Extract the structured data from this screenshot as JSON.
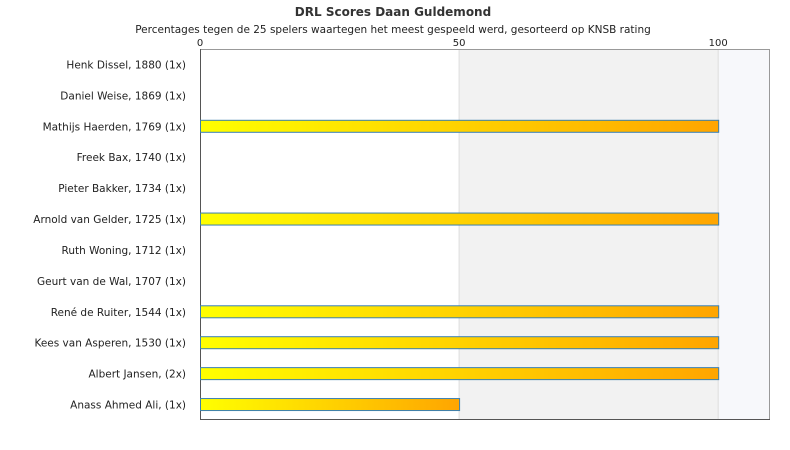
{
  "chart_data": {
    "type": "bar",
    "orientation": "horizontal",
    "title": "DRL Scores Daan Guldemond",
    "subtitle": "Percentages tegen de 25 spelers waartegen het meest gespeeld werd, gesorteerd op KNSB rating",
    "xlim": [
      0,
      110
    ],
    "xticks": [
      0,
      50,
      100
    ],
    "categories": [
      "Henk Dissel, 1880 (1x)",
      "Daniel Weise, 1869 (1x)",
      "Mathijs Haerden, 1769 (1x)",
      "Freek Bax, 1740 (1x)",
      "Pieter Bakker, 1734 (1x)",
      "Arnold van Gelder, 1725 (1x)",
      "Ruth Woning, 1712 (1x)",
      "Geurt van de Wal, 1707 (1x)",
      "René de Ruiter, 1544 (1x)",
      "Kees van Asperen, 1530 (1x)",
      "Albert Jansen,  (2x)",
      "Anass Ahmed Ali,  (1x)"
    ],
    "values": [
      0,
      0,
      100,
      0,
      0,
      100,
      0,
      0,
      100,
      100,
      100,
      50
    ],
    "colors": {
      "bar_start": "#ffff00",
      "bar_end": "#ffa500",
      "bar_border": "#3a7fb0",
      "band_light": "#f2f2f2",
      "band_lighter": "#f7f8fb"
    }
  }
}
